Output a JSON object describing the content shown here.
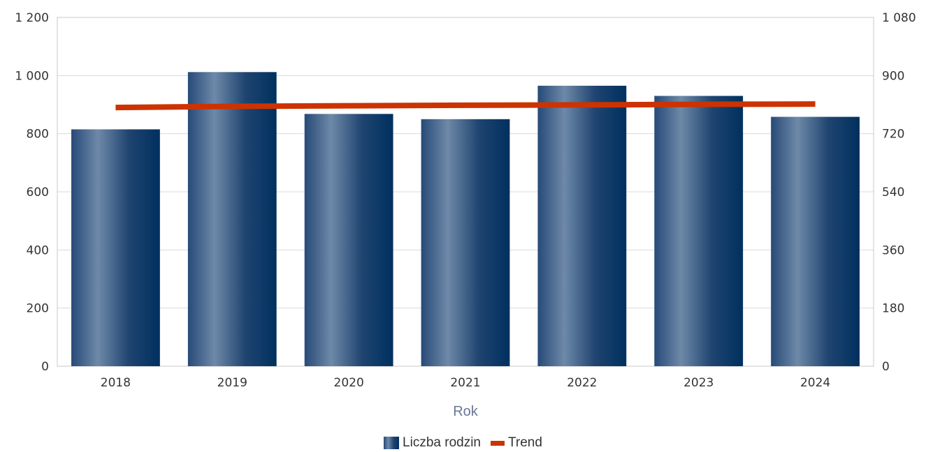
{
  "chart_data": {
    "type": "bar",
    "categories": [
      "2018",
      "2019",
      "2020",
      "2021",
      "2022",
      "2023",
      "2024"
    ],
    "series": [
      {
        "name": "Liczba rodzin",
        "type": "bar",
        "axis": "left",
        "values": [
          815,
          1012,
          868,
          850,
          965,
          930,
          858
        ],
        "color": "#00305f"
      },
      {
        "name": "Trend",
        "type": "line",
        "axis": "left",
        "values": [
          890,
          894,
          896,
          898,
          899,
          901,
          902
        ],
        "color": "#cc3300"
      }
    ],
    "xlabel": "Rok",
    "ylim": [
      0,
      1200
    ],
    "y_ticks": [
      "0",
      "200",
      "400",
      "600",
      "800",
      "1 000",
      "1 200"
    ],
    "y2lim": [
      0,
      1080
    ],
    "y2_ticks": [
      "0",
      "180",
      "360",
      "540",
      "720",
      "900",
      "1 080"
    ],
    "grid": true,
    "legend_position": "bottom"
  }
}
